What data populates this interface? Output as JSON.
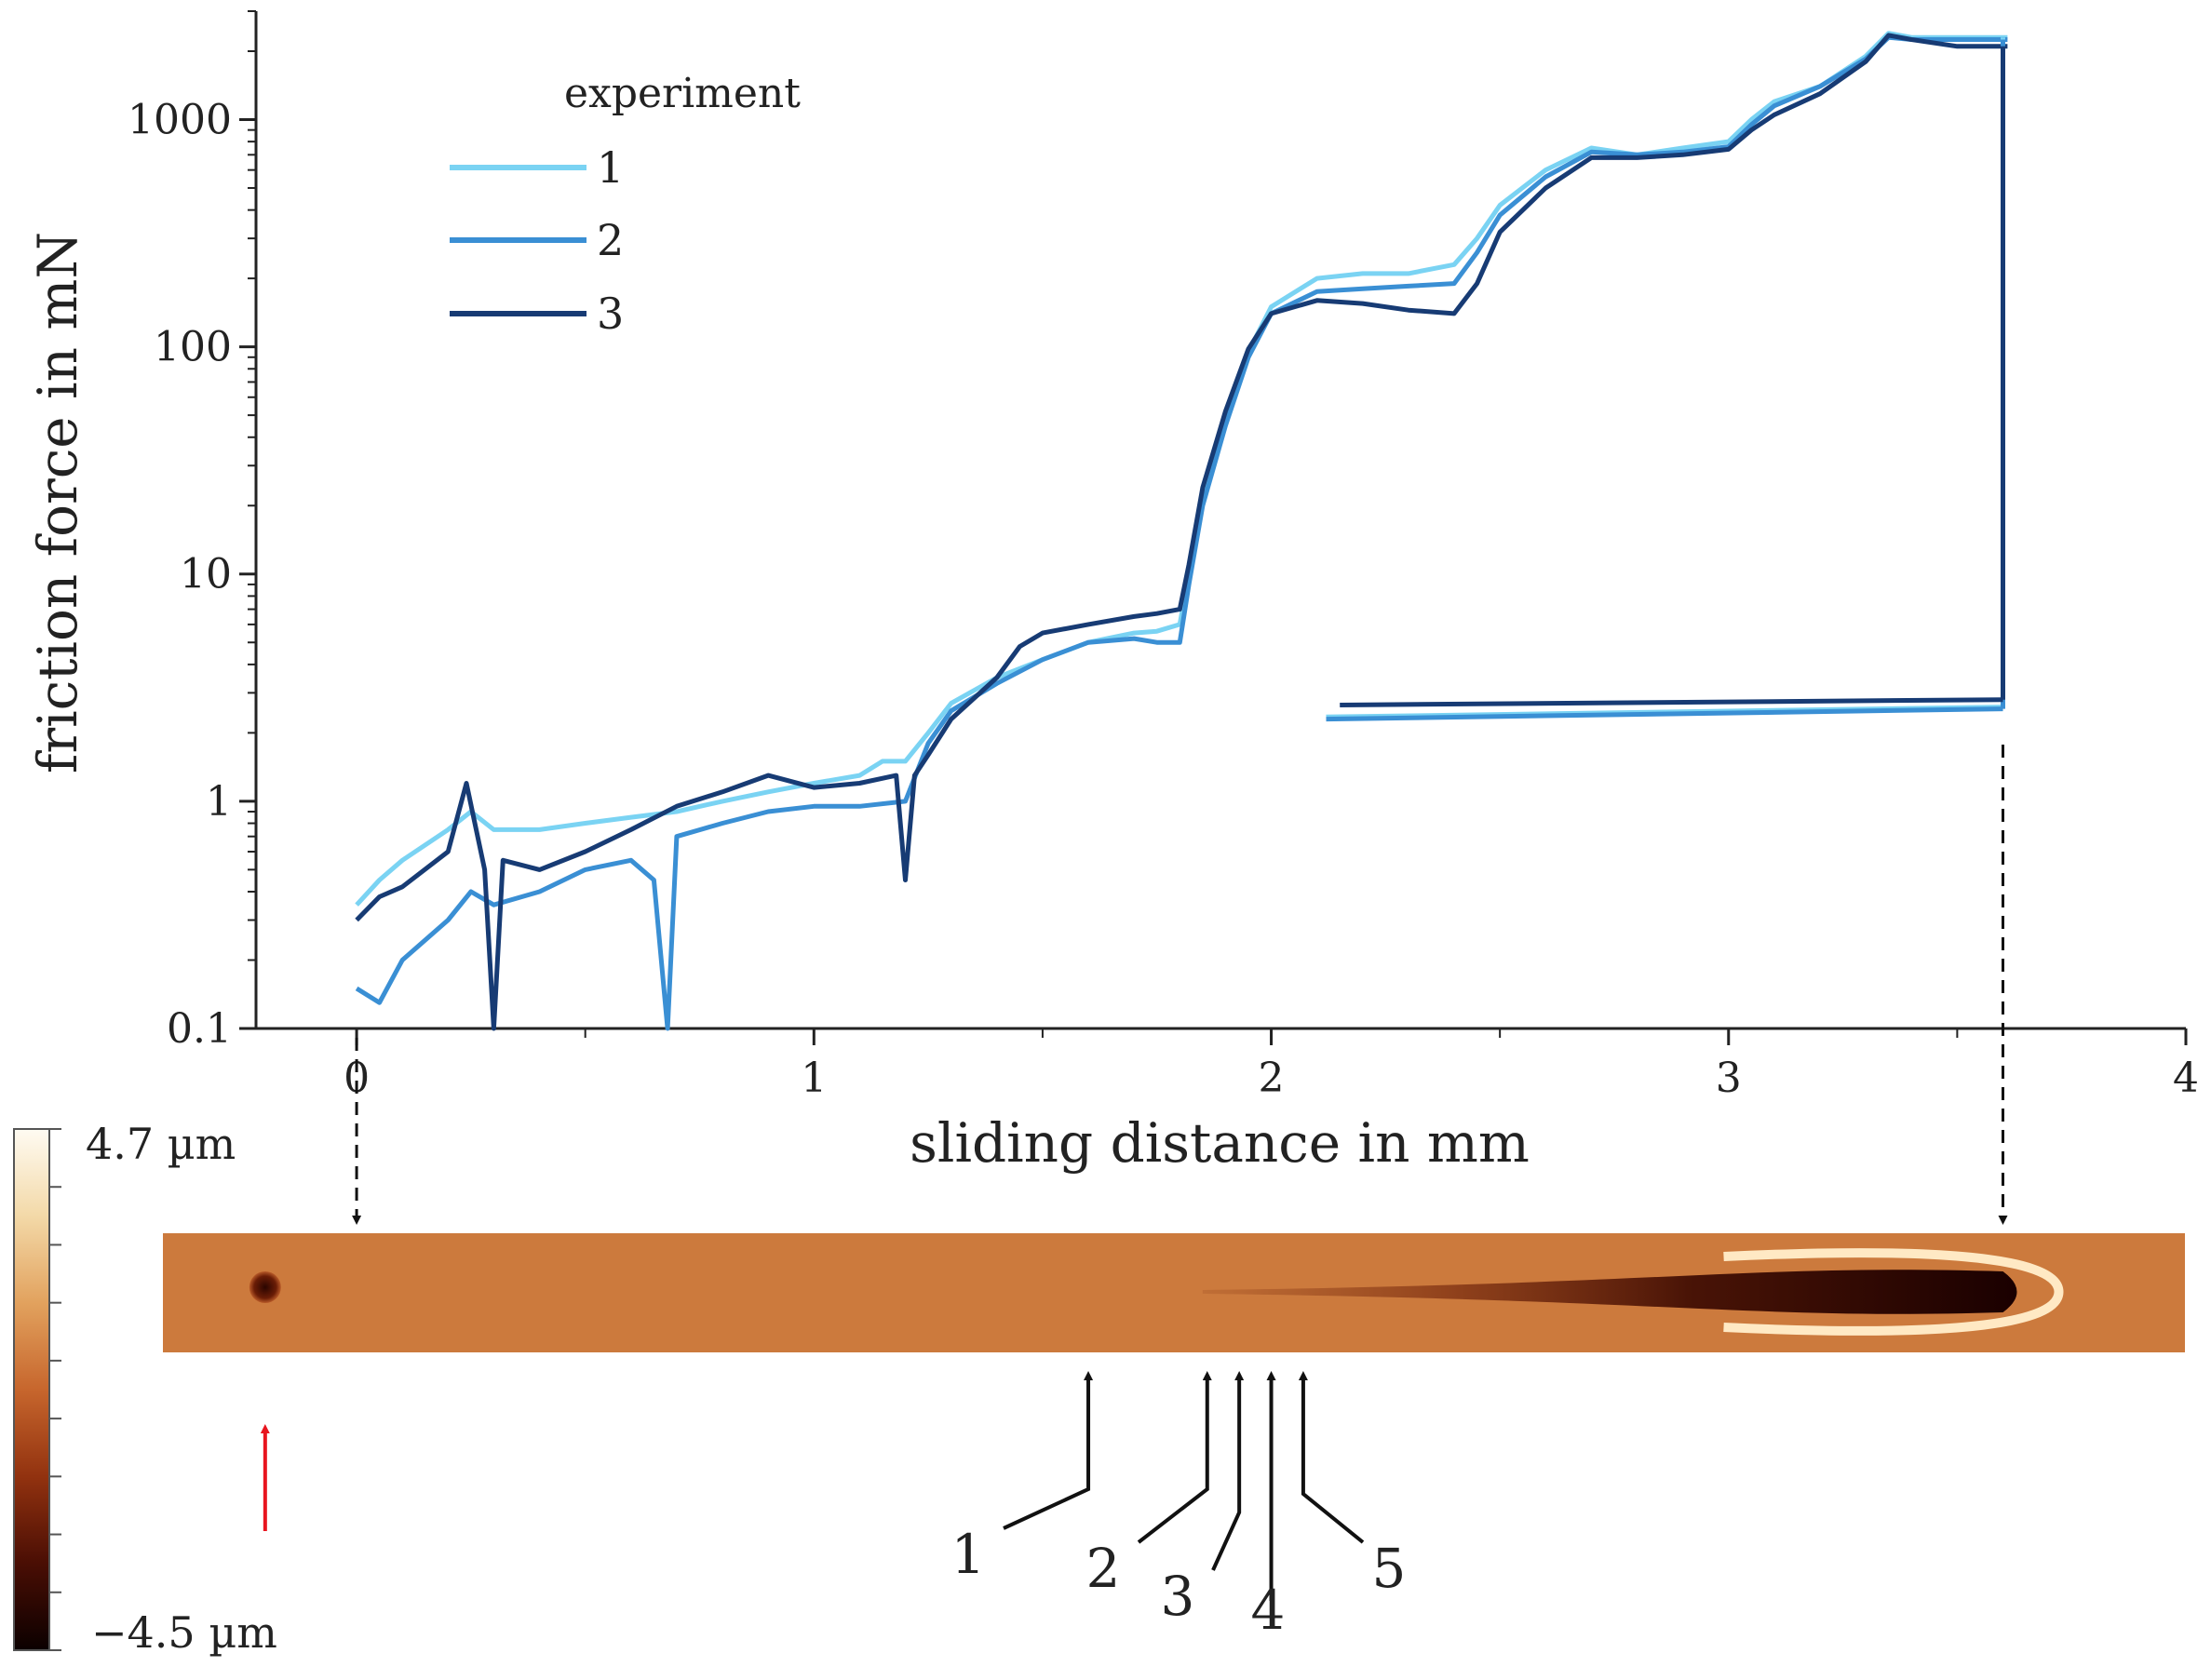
{
  "chart_data": {
    "type": "line",
    "xlabel": "sliding distance in mm",
    "ylabel": "friction force in mN",
    "xlim": [
      -0.22,
      4
    ],
    "ylim": [
      0.1,
      3000
    ],
    "yscale": "log",
    "x_ticks": [
      0,
      1,
      2,
      3,
      4
    ],
    "y_ticks": [
      0.1,
      1,
      10,
      100,
      1000
    ],
    "x_tick_labels": [
      "0",
      "1",
      "2",
      "3",
      "4"
    ],
    "y_tick_labels": [
      "0.1",
      "1",
      "10",
      "100",
      "1000"
    ],
    "legend": {
      "title": "experiment",
      "placement": "top-left"
    },
    "series": [
      {
        "name": "1",
        "color": "#7ad3f3",
        "x": [
          0.0,
          0.05,
          0.1,
          0.2,
          0.25,
          0.3,
          0.4,
          0.5,
          0.6,
          0.7,
          0.8,
          0.9,
          1.0,
          1.1,
          1.15,
          1.2,
          1.25,
          1.3,
          1.4,
          1.5,
          1.6,
          1.7,
          1.75,
          1.8,
          1.82,
          1.85,
          1.9,
          1.95,
          2.0,
          2.1,
          2.2,
          2.3,
          2.4,
          2.45,
          2.5,
          2.6,
          2.7,
          2.8,
          2.9,
          3.0,
          3.05,
          3.1,
          3.2,
          3.3,
          3.35,
          3.4,
          3.5,
          3.58,
          3.6,
          3.61
        ],
        "y": [
          0.35,
          0.45,
          0.55,
          0.75,
          0.9,
          0.75,
          0.75,
          0.8,
          0.85,
          0.9,
          1.0,
          1.1,
          1.2,
          1.3,
          1.5,
          1.5,
          2.0,
          2.7,
          3.5,
          4.2,
          5.0,
          5.5,
          5.6,
          6.0,
          10,
          22,
          50,
          95,
          150,
          200,
          210,
          210,
          230,
          300,
          420,
          600,
          750,
          700,
          750,
          800,
          1000,
          1200,
          1400,
          1900,
          2400,
          2300,
          2300,
          2300,
          2300,
          2300
        ]
      },
      {
        "name": "2",
        "color": "#3a8fd4",
        "x": [
          0.0,
          0.05,
          0.1,
          0.2,
          0.25,
          0.3,
          0.4,
          0.5,
          0.6,
          0.65,
          0.68,
          0.7,
          0.8,
          0.9,
          1.0,
          1.1,
          1.2,
          1.25,
          1.3,
          1.4,
          1.5,
          1.6,
          1.7,
          1.75,
          1.8,
          1.82,
          1.85,
          1.9,
          1.95,
          2.0,
          2.1,
          2.2,
          2.3,
          2.4,
          2.45,
          2.5,
          2.6,
          2.7,
          2.8,
          2.9,
          3.0,
          3.05,
          3.1,
          3.2,
          3.3,
          3.35,
          3.4,
          3.5,
          3.58,
          3.6,
          3.61
        ],
        "y": [
          0.15,
          0.13,
          0.2,
          0.3,
          0.4,
          0.35,
          0.4,
          0.5,
          0.55,
          0.45,
          0.1,
          0.7,
          0.8,
          0.9,
          0.95,
          0.95,
          1.0,
          1.8,
          2.5,
          3.3,
          4.2,
          5.0,
          5.2,
          5.0,
          5.0,
          9,
          20,
          45,
          90,
          140,
          175,
          180,
          185,
          190,
          260,
          380,
          560,
          720,
          700,
          720,
          760,
          950,
          1150,
          1400,
          1850,
          2300,
          2250,
          2250,
          2250,
          2250,
          2250
        ]
      },
      {
        "name": "3",
        "color": "#173b74",
        "x": [
          0.0,
          0.05,
          0.1,
          0.2,
          0.24,
          0.28,
          0.3,
          0.32,
          0.4,
          0.5,
          0.6,
          0.7,
          0.8,
          0.9,
          1.0,
          1.1,
          1.18,
          1.2,
          1.22,
          1.25,
          1.3,
          1.4,
          1.45,
          1.5,
          1.6,
          1.7,
          1.75,
          1.8,
          1.82,
          1.85,
          1.9,
          1.95,
          2.0,
          2.1,
          2.2,
          2.3,
          2.4,
          2.45,
          2.5,
          2.6,
          2.7,
          2.8,
          2.9,
          3.0,
          3.05,
          3.1,
          3.2,
          3.3,
          3.35,
          3.4,
          3.5,
          3.58,
          3.6,
          3.61
        ],
        "y": [
          0.3,
          0.38,
          0.42,
          0.6,
          1.2,
          0.5,
          0.1,
          0.55,
          0.5,
          0.6,
          0.75,
          0.95,
          1.1,
          1.3,
          1.15,
          1.2,
          1.3,
          0.45,
          1.3,
          1.6,
          2.3,
          3.5,
          4.8,
          5.5,
          6.0,
          6.5,
          6.7,
          7.0,
          11,
          24,
          52,
          98,
          140,
          160,
          155,
          145,
          140,
          190,
          320,
          500,
          680,
          680,
          700,
          740,
          900,
          1050,
          1300,
          1800,
          2350,
          2250,
          2100,
          2100,
          2100,
          2100
        ]
      }
    ],
    "return_traces": [
      {
        "name": "1",
        "color": "#7ad3f3",
        "x": [
          2.12,
          3.6
        ],
        "y": [
          2.35,
          2.6
        ]
      },
      {
        "name": "2",
        "color": "#3a8fd4",
        "x": [
          2.12,
          3.6
        ],
        "y": [
          2.3,
          2.55
        ]
      },
      {
        "name": "3",
        "color": "#173b74",
        "x": [
          2.15,
          3.6
        ],
        "y": [
          2.65,
          2.8
        ]
      }
    ],
    "colorbar": {
      "max_label": "4.7 µm",
      "min_label": "−4.5 µm",
      "colors": [
        "#fffbf2",
        "#f3d9a8",
        "#e2a25e",
        "#c7662d",
        "#92320f",
        "#4a0e04",
        "#0b0000"
      ]
    },
    "height_map": {
      "background_color": "#cc7a3d",
      "groove_color": "#1a0000",
      "rim_color": "#ffe9c4",
      "groove_start_mm": 1.85,
      "groove_end_mm": 3.6,
      "indent_mm": -0.2
    },
    "dashed_guides_mm": [
      0,
      3.6
    ],
    "bottom_markers": [
      {
        "label": "1",
        "x_mm": 1.6
      },
      {
        "label": "2",
        "x_mm": 1.86
      },
      {
        "label": "3",
        "x_mm": 1.93
      },
      {
        "label": "4",
        "x_mm": 2.0
      },
      {
        "label": "5",
        "x_mm": 2.07
      }
    ],
    "red_marker_x_mm": -0.2
  }
}
